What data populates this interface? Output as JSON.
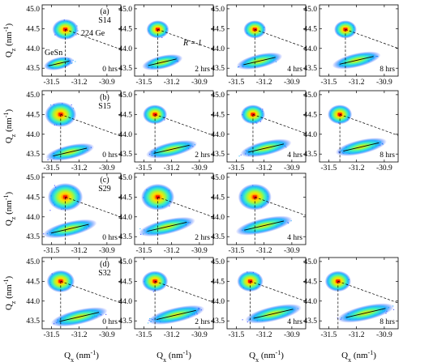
{
  "colors": {
    "background": "#ffffff",
    "map_scale": [
      "#1a2bff",
      "#00a9ff",
      "#3df0c0",
      "#a8f53a",
      "#ffe000",
      "#ff8c00",
      "#ff1a00"
    ],
    "annotation_line": "#000000"
  },
  "axis_text": {
    "ylabel_main": "Q",
    "ylabel_sub": "z",
    "ylabel_unit": "(nm",
    "ylabel_exp": "-1",
    "ylabel_close": ")",
    "xlabel_main": "Q",
    "xlabel_sub": "x",
    "xlabel_unit": "(nm",
    "xlabel_exp": "-1",
    "xlabel_close": ")"
  },
  "chart_data": {
    "type": "heatmap",
    "description_of_mark": "reciprocal space maps (X-ray diffraction intensity)",
    "xlim": [
      -31.6,
      -30.75
    ],
    "ylim": [
      43.3,
      45.1
    ],
    "x_ticks": [
      -31.5,
      -31.2,
      -30.9
    ],
    "x_tick_labels": [
      "-31.5",
      "-31.2",
      "-30.9"
    ],
    "y_ticks": [
      43.5,
      44.0,
      44.5,
      45.0
    ],
    "y_tick_labels": [
      "43.5",
      "44.0",
      "44.5",
      "45.0"
    ],
    "annotations": {
      "substrate_peak": "224 Ge",
      "layer_peak": "GeSn",
      "relaxation_line": "R = 1"
    },
    "rows": [
      {
        "label": "(a)",
        "sample": "S14",
        "panels": [
          {
            "time": "0 hrs",
            "ge_peak": [
              -31.35,
              44.48
            ],
            "gesn_peak": [
              -31.42,
              43.62
            ],
            "spread": 0.55,
            "ge_size": 0.55
          },
          {
            "time": "2 hrs",
            "ge_peak": [
              -31.35,
              44.48
            ],
            "gesn_peak": [
              -31.3,
              43.65
            ],
            "spread": 0.75,
            "ge_size": 0.45
          },
          {
            "time": "4 hrs",
            "ge_peak": [
              -31.3,
              44.48
            ],
            "gesn_peak": [
              -31.25,
              43.68
            ],
            "spread": 0.85,
            "ge_size": 0.45
          },
          {
            "time": "8 hrs",
            "ge_peak": [
              -31.32,
              44.48
            ],
            "gesn_peak": [
              -31.2,
              43.7
            ],
            "spread": 0.9,
            "ge_size": 0.45
          }
        ]
      },
      {
        "label": "(b)",
        "sample": "S15",
        "panels": [
          {
            "time": "0 hrs",
            "ge_peak": [
              -31.4,
              44.5
            ],
            "gesn_peak": [
              -31.3,
              43.55
            ],
            "spread": 0.9,
            "ge_size": 0.7
          },
          {
            "time": "2 hrs",
            "ge_peak": [
              -31.38,
              44.5
            ],
            "gesn_peak": [
              -31.2,
              43.62
            ],
            "spread": 0.95,
            "ge_size": 0.5
          },
          {
            "time": "4 hrs",
            "ge_peak": [
              -31.32,
              44.5
            ],
            "gesn_peak": [
              -31.18,
              43.65
            ],
            "spread": 0.95,
            "ge_size": 0.5
          },
          {
            "time": "8 hrs",
            "ge_peak": [
              -31.38,
              44.5
            ],
            "gesn_peak": [
              -31.15,
              43.68
            ],
            "spread": 0.95,
            "ge_size": 0.5
          }
        ]
      },
      {
        "label": "(c)",
        "sample": "S29",
        "panels": [
          {
            "time": "0 hrs",
            "ge_peak": [
              -31.35,
              44.5
            ],
            "gesn_peak": [
              -31.3,
              43.7
            ],
            "spread": 1.0,
            "ge_size": 0.8
          },
          {
            "time": "2 hrs",
            "ge_peak": [
              -31.35,
              44.5
            ],
            "gesn_peak": [
              -31.25,
              43.75
            ],
            "spread": 1.05,
            "ge_size": 0.75
          },
          {
            "time": "4 hrs",
            "ge_peak": [
              -31.3,
              44.5
            ],
            "gesn_peak": [
              -31.2,
              43.78
            ],
            "spread": 1.05,
            "ge_size": 0.75
          }
        ]
      },
      {
        "label": "(d)",
        "sample": "S32",
        "panels": [
          {
            "time": "0 hrs",
            "ge_peak": [
              -31.4,
              44.5
            ],
            "gesn_peak": [
              -31.2,
              43.6
            ],
            "spread": 1.05,
            "ge_size": 0.6
          },
          {
            "time": "2 hrs",
            "ge_peak": [
              -31.38,
              44.5
            ],
            "gesn_peak": [
              -31.15,
              43.65
            ],
            "spread": 1.05,
            "ge_size": 0.55
          },
          {
            "time": "4 hrs",
            "ge_peak": [
              -31.35,
              44.5
            ],
            "gesn_peak": [
              -31.1,
              43.68
            ],
            "spread": 1.05,
            "ge_size": 0.55
          },
          {
            "time": "8 hrs",
            "ge_peak": [
              -31.4,
              44.5
            ],
            "gesn_peak": [
              -31.1,
              43.7
            ],
            "spread": 1.05,
            "ge_size": 0.55
          }
        ]
      }
    ]
  }
}
